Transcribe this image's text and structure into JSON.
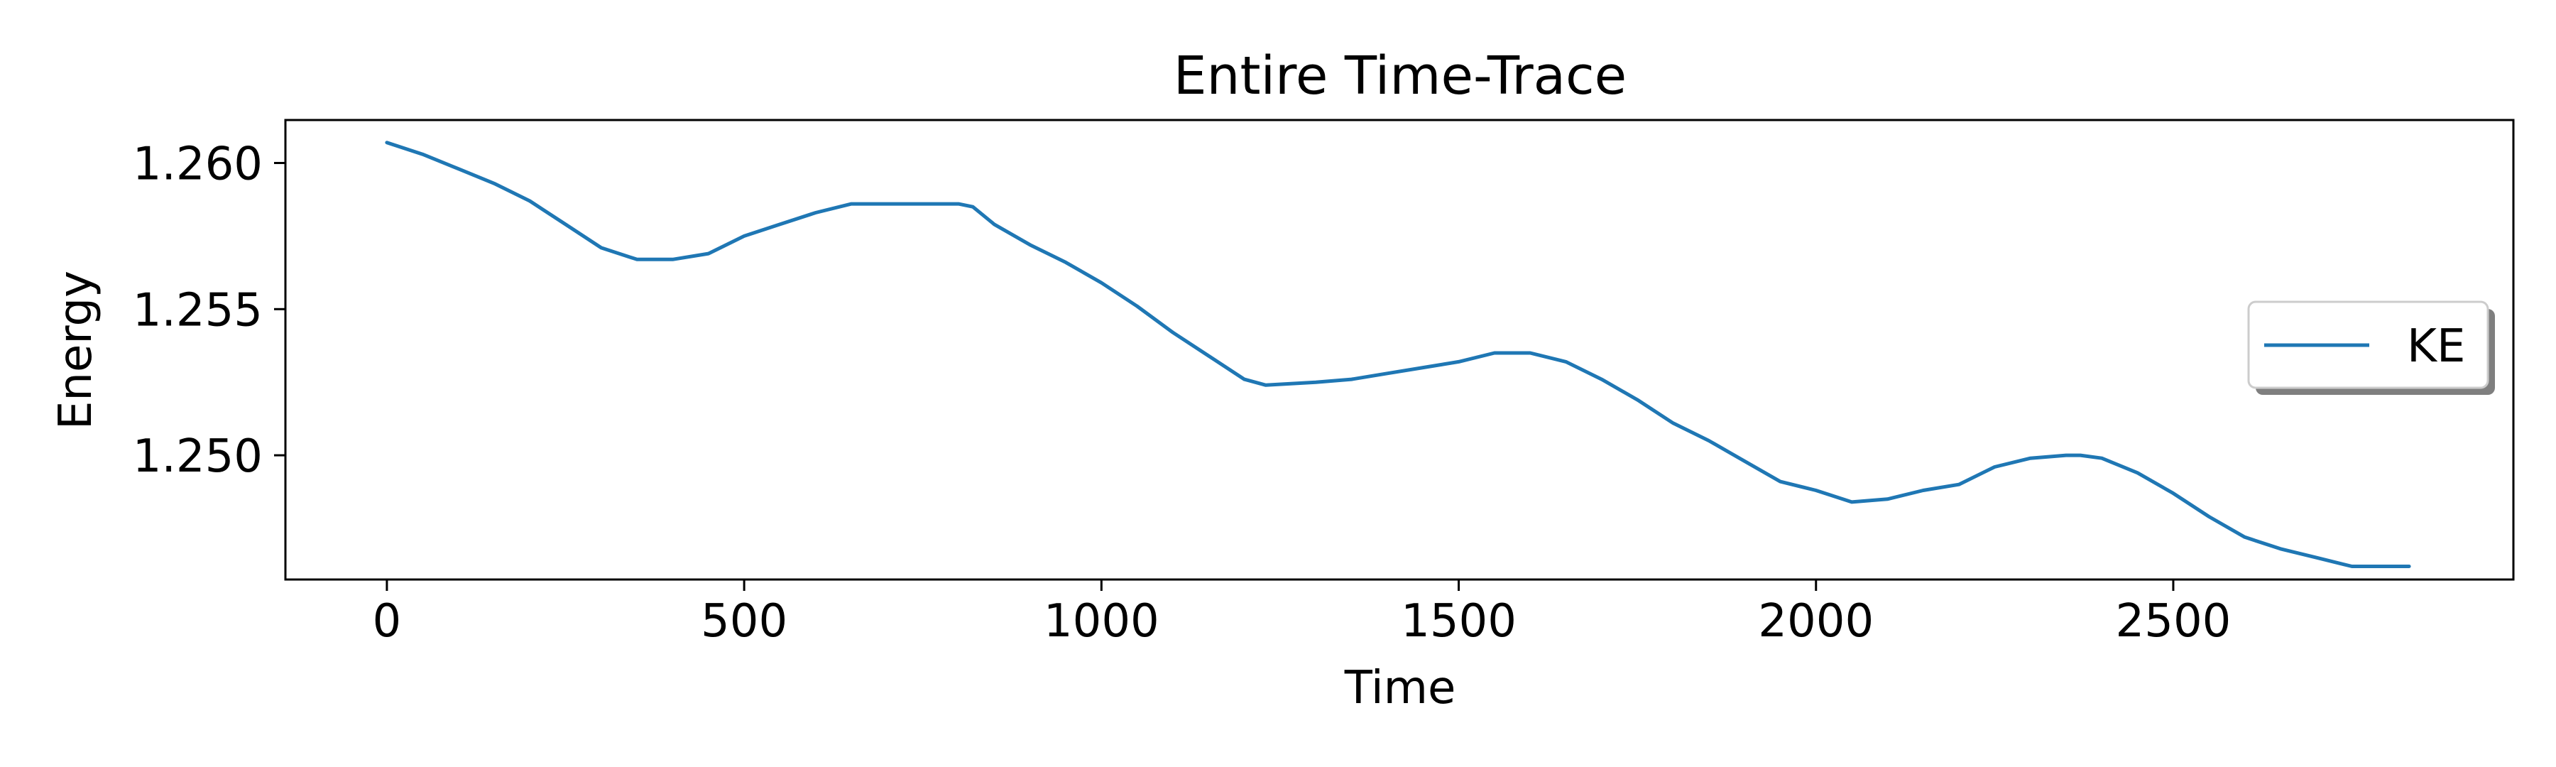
{
  "chart_data": {
    "type": "line",
    "title": "Entire Time-Trace",
    "xlabel": "Time",
    "ylabel": "Energy",
    "xlim": [
      -142,
      2976
    ],
    "ylim": [
      1.24575,
      1.26147
    ],
    "xticks": [
      0,
      500,
      1000,
      1500,
      2000,
      2500
    ],
    "xtick_labels": [
      "0",
      "500",
      "1000",
      "1500",
      "2000",
      "2500"
    ],
    "yticks": [
      1.25,
      1.255,
      1.26
    ],
    "ytick_labels": [
      "1.250",
      "1.255",
      "1.260"
    ],
    "grid": false,
    "legend": {
      "position": "center-right",
      "entries": [
        "KE"
      ]
    },
    "series": [
      {
        "name": "KE",
        "color": "#1f77b4",
        "x": [
          0,
          50,
          100,
          150,
          200,
          250,
          300,
          350,
          400,
          450,
          500,
          550,
          600,
          650,
          700,
          750,
          800,
          820,
          850,
          900,
          950,
          1000,
          1050,
          1100,
          1150,
          1200,
          1230,
          1300,
          1350,
          1400,
          1450,
          1500,
          1550,
          1580,
          1600,
          1650,
          1700,
          1750,
          1800,
          1850,
          1900,
          1950,
          2000,
          2050,
          2100,
          2150,
          2200,
          2250,
          2300,
          2350,
          2370,
          2400,
          2450,
          2500,
          2550,
          2600,
          2650,
          2700,
          2750,
          2790,
          2830
        ],
        "y": [
          1.2607,
          1.2603,
          1.2598,
          1.2593,
          1.2587,
          1.2579,
          1.2571,
          1.2567,
          1.2567,
          1.2569,
          1.2575,
          1.2579,
          1.2583,
          1.2586,
          1.2586,
          1.2586,
          1.2586,
          1.2585,
          1.2579,
          1.2572,
          1.2566,
          1.2559,
          1.2551,
          1.2542,
          1.2534,
          1.2526,
          1.2524,
          1.2525,
          1.2526,
          1.2528,
          1.253,
          1.2532,
          1.2535,
          1.2535,
          1.2535,
          1.2532,
          1.2526,
          1.2519,
          1.2511,
          1.2505,
          1.2498,
          1.2491,
          1.2488,
          1.2484,
          1.2485,
          1.2488,
          1.249,
          1.2496,
          1.2499,
          1.25,
          1.25,
          1.2499,
          1.2494,
          1.2487,
          1.2479,
          1.2472,
          1.2468,
          1.2465,
          1.2462,
          1.2462,
          1.2462
        ]
      }
    ]
  }
}
